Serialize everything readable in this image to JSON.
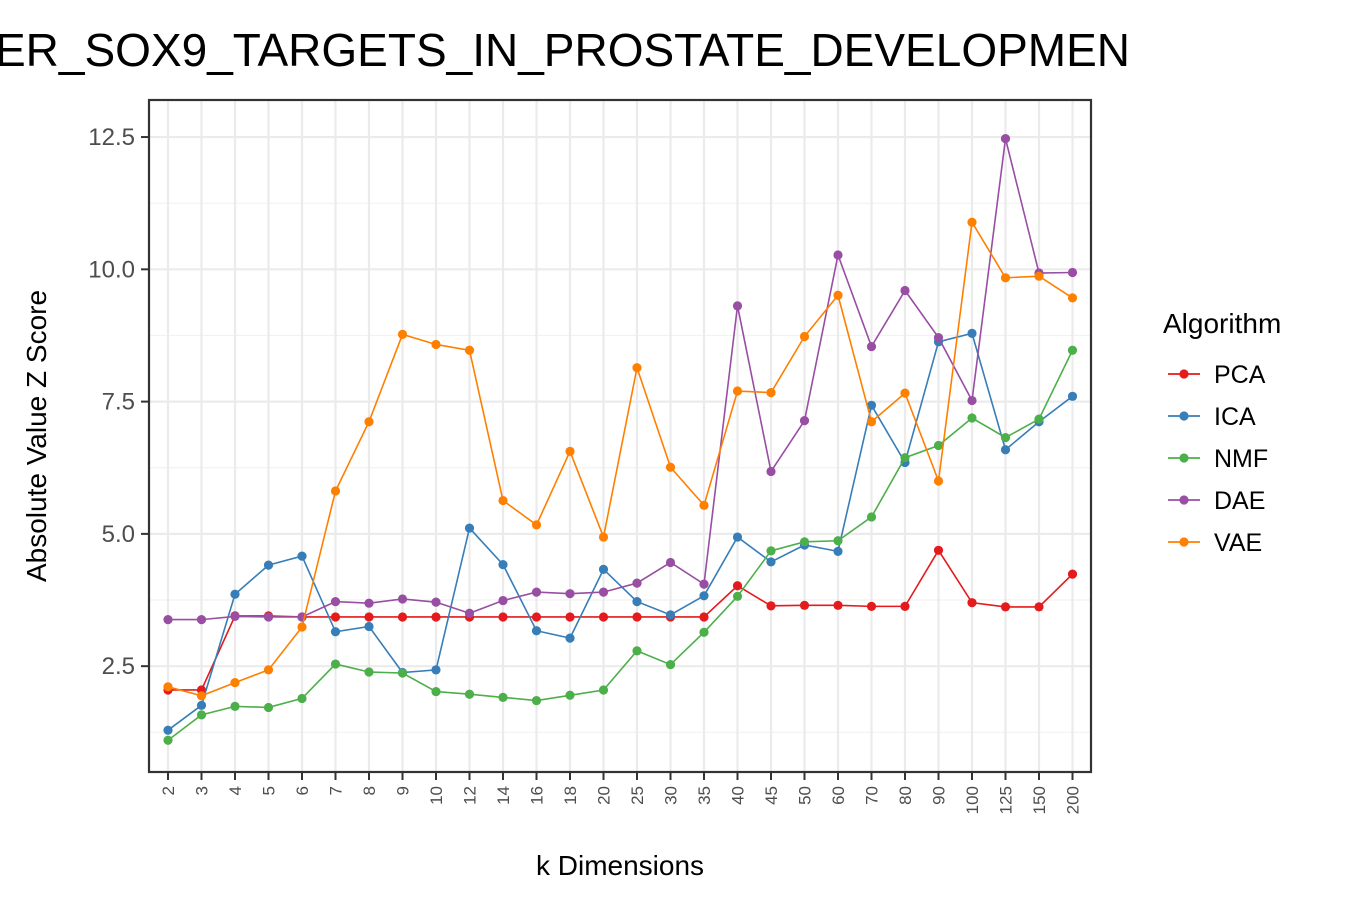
{
  "chart_data": {
    "type": "line",
    "title": "ER_SOX9_TARGETS_IN_PROSTATE_DEVELOPMEN",
    "xlabel": "k Dimensions",
    "ylabel": "Absolute Value Z Score",
    "categories": [
      "2",
      "3",
      "4",
      "5",
      "6",
      "7",
      "8",
      "9",
      "10",
      "12",
      "14",
      "16",
      "18",
      "20",
      "25",
      "30",
      "35",
      "40",
      "45",
      "50",
      "60",
      "70",
      "80",
      "90",
      "100",
      "125",
      "150",
      "200"
    ],
    "yticks": [
      "2.5",
      "5.0",
      "7.5",
      "10.0",
      "12.5"
    ],
    "ylim": [
      0.5,
      13.2
    ],
    "grid": true,
    "legend": {
      "title": "Algorithm",
      "placement": "right"
    },
    "series": [
      {
        "name": "PCA",
        "color": "#e41a1c",
        "values": [
          2.05,
          2.05,
          3.45,
          3.45,
          3.43,
          3.43,
          3.43,
          3.43,
          3.43,
          3.43,
          3.43,
          3.43,
          3.43,
          3.43,
          3.43,
          3.43,
          3.43,
          4.02,
          3.64,
          3.65,
          3.65,
          3.63,
          3.63,
          4.69,
          3.7,
          3.62,
          3.62,
          4.24
        ]
      },
      {
        "name": "ICA",
        "color": "#377eb8",
        "values": [
          1.29,
          1.76,
          3.86,
          4.41,
          4.58,
          3.15,
          3.25,
          2.38,
          2.43,
          5.11,
          4.42,
          3.17,
          3.03,
          4.33,
          3.72,
          3.47,
          3.83,
          4.94,
          4.47,
          4.79,
          4.67,
          7.43,
          6.35,
          8.63,
          8.79,
          6.59,
          7.12,
          7.6
        ]
      },
      {
        "name": "NMF",
        "color": "#4daf4a",
        "values": [
          1.1,
          1.58,
          1.74,
          1.72,
          1.89,
          2.54,
          2.39,
          2.37,
          2.02,
          1.97,
          1.91,
          1.85,
          1.95,
          2.05,
          2.79,
          2.53,
          3.14,
          3.82,
          4.68,
          4.85,
          4.87,
          5.32,
          6.44,
          6.67,
          7.19,
          6.82,
          7.17,
          8.47
        ]
      },
      {
        "name": "DAE",
        "color": "#984ea3",
        "values": [
          3.38,
          3.38,
          3.44,
          3.43,
          3.43,
          3.72,
          3.69,
          3.77,
          3.71,
          3.5,
          3.74,
          3.9,
          3.87,
          3.9,
          4.07,
          4.46,
          4.05,
          9.31,
          6.18,
          7.14,
          10.27,
          8.54,
          9.6,
          8.71,
          7.52,
          12.47,
          9.93,
          9.94
        ]
      },
      {
        "name": "VAE",
        "color": "#ff7f00",
        "values": [
          2.11,
          1.94,
          2.19,
          2.43,
          3.24,
          5.81,
          7.12,
          8.77,
          8.58,
          8.47,
          5.63,
          5.17,
          6.56,
          4.94,
          8.14,
          6.26,
          5.54,
          7.7,
          7.67,
          8.73,
          9.51,
          7.12,
          7.66,
          6.0,
          10.89,
          9.84,
          9.87,
          9.46
        ]
      }
    ]
  }
}
